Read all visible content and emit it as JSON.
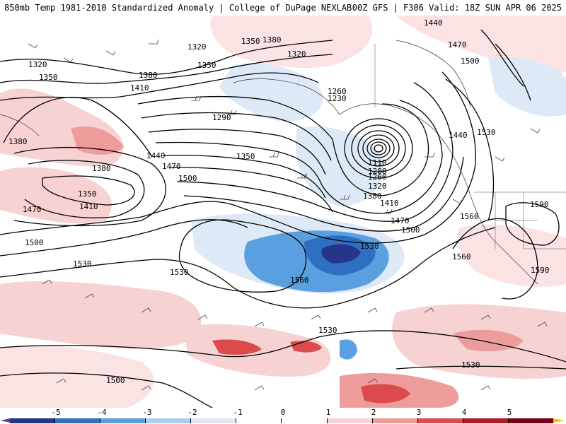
{
  "header": {
    "left": "850mb Temp 1981-2010 Standardized Anomaly | College of DuPage NEXLAB",
    "right": "00Z GFS | F306 Valid: 18Z SUN APR 06 2025"
  },
  "contour_labels": [
    {
      "id": "c1320a",
      "text": "1320"
    },
    {
      "id": "c1350a",
      "text": "1350"
    },
    {
      "id": "c1380a",
      "text": "1380"
    },
    {
      "id": "c1320b",
      "text": "1320"
    },
    {
      "id": "c1350b",
      "text": "1350"
    },
    {
      "id": "c1350c",
      "text": "1350"
    },
    {
      "id": "c1320c",
      "text": "1320"
    },
    {
      "id": "c1380b",
      "text": "1380"
    },
    {
      "id": "c1410a",
      "text": "1410"
    },
    {
      "id": "c1290",
      "text": "1290"
    },
    {
      "id": "c1260a",
      "text": "1260"
    },
    {
      "id": "c1230",
      "text": "1230"
    },
    {
      "id": "c1440a",
      "text": "1440"
    },
    {
      "id": "c1470a",
      "text": "1470"
    },
    {
      "id": "c1500a",
      "text": "1500"
    },
    {
      "id": "c1440b",
      "text": "1440"
    },
    {
      "id": "c1530a",
      "text": "1530"
    },
    {
      "id": "c1380c",
      "text": "1380"
    },
    {
      "id": "c1380d",
      "text": "1380"
    },
    {
      "id": "c1350d",
      "text": "1350"
    },
    {
      "id": "c1410b",
      "text": "1410"
    },
    {
      "id": "c1470b",
      "text": "1470"
    },
    {
      "id": "c1440c",
      "text": "1440"
    },
    {
      "id": "c1470c",
      "text": "1470"
    },
    {
      "id": "c1500b",
      "text": "1500"
    },
    {
      "id": "c1350e",
      "text": "1350"
    },
    {
      "id": "c1110",
      "text": "1110"
    },
    {
      "id": "c1200",
      "text": "1200"
    },
    {
      "id": "c1260b",
      "text": "1260"
    },
    {
      "id": "c1320d",
      "text": "1320"
    },
    {
      "id": "c1380e",
      "text": "1380"
    },
    {
      "id": "c1410c",
      "text": "1410"
    },
    {
      "id": "c1470d",
      "text": "1470"
    },
    {
      "id": "c1500c",
      "text": "1500"
    },
    {
      "id": "c1560a",
      "text": "1560"
    },
    {
      "id": "c1590a",
      "text": "1590"
    },
    {
      "id": "c1500d",
      "text": "1500"
    },
    {
      "id": "c1530b",
      "text": "1530"
    },
    {
      "id": "c1530c",
      "text": "1530"
    },
    {
      "id": "c1560b",
      "text": "1560"
    },
    {
      "id": "c1530d",
      "text": "1530"
    },
    {
      "id": "c1560c",
      "text": "1560"
    },
    {
      "id": "c1590b",
      "text": "1590"
    },
    {
      "id": "c1530e",
      "text": "1530"
    },
    {
      "id": "c1500e",
      "text": "1500"
    },
    {
      "id": "c1530f",
      "text": "1530"
    }
  ],
  "colorbar": {
    "ticks": [
      "-5",
      "-4",
      "-3",
      "-2",
      "-1",
      "0",
      "1",
      "2",
      "3",
      "4",
      "5"
    ],
    "colors": [
      "#6a3d9a",
      "#25358a",
      "#2f6fc2",
      "#5aa0e0",
      "#a9cdee",
      "#dde9f7",
      "#ffffff",
      "#ffffff",
      "#f6d2d2",
      "#ee9b9b",
      "#dc4b4b",
      "#b0182a",
      "#7a0012",
      "#f2c200"
    ],
    "segments": [
      "#25358a",
      "#2f6fc2",
      "#5aa0e0",
      "#a9cdee",
      "#dde9f7",
      "#ffffff",
      "#ffffff",
      "#f6d2d2",
      "#ee9b9b",
      "#dc4b4b",
      "#b0182a",
      "#7a0012"
    ]
  }
}
